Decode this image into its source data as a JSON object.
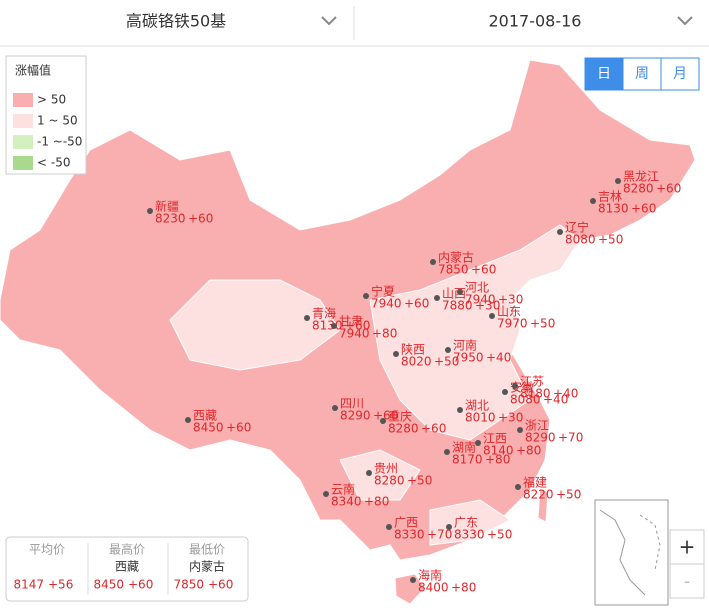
{
  "header": {
    "product": "高碳铬铁50基",
    "date": "2017-08-16"
  },
  "period_tabs": [
    "日",
    "周",
    "月"
  ],
  "legend": {
    "title": "涨幅值",
    "items": [
      {
        "label": "> 50",
        "color": "#f9afb0"
      },
      {
        "label": "1 ~ 50",
        "color": "#fde0e0"
      },
      {
        "label": "-1 ~-50",
        "color": "#d2f1bf"
      },
      {
        "label": "< -50",
        "color": "#a9d98c"
      }
    ]
  },
  "provinces": [
    {
      "name": "新疆",
      "price": 8230,
      "change": "+60"
    },
    {
      "name": "黑龙江",
      "price": 8280,
      "change": "+60"
    },
    {
      "name": "吉林",
      "price": 8130,
      "change": "+60"
    },
    {
      "name": "辽宁",
      "price": 8080,
      "change": "+50"
    },
    {
      "name": "内蒙古",
      "price": 7850,
      "change": "+60"
    },
    {
      "name": "宁夏",
      "price": 7940,
      "change": "+60"
    },
    {
      "name": "山西",
      "price": 7880,
      "change": "+30"
    },
    {
      "name": "河北",
      "price": 7940,
      "change": "+30"
    },
    {
      "name": "青海",
      "price": 8130,
      "change": "+60"
    },
    {
      "name": "甘肃",
      "price": 7940,
      "change": "+80"
    },
    {
      "name": "山东",
      "price": 7970,
      "change": "+50"
    },
    {
      "name": "陕西",
      "price": 8020,
      "change": "+50"
    },
    {
      "name": "河南",
      "price": 7950,
      "change": "+40"
    },
    {
      "name": "安徽",
      "price": 8080,
      "change": "+40"
    },
    {
      "name": "江苏",
      "price": 8180,
      "change": "+40"
    },
    {
      "name": "西藏",
      "price": 8450,
      "change": "+60"
    },
    {
      "name": "四川",
      "price": 8290,
      "change": "+60"
    },
    {
      "name": "重庆",
      "price": 8280,
      "change": "+60"
    },
    {
      "name": "湖北",
      "price": 8010,
      "change": "+30"
    },
    {
      "name": "浙江",
      "price": 8290,
      "change": "+70"
    },
    {
      "name": "湖南",
      "price": 8170,
      "change": "+80"
    },
    {
      "name": "江西",
      "price": 8140,
      "change": "+80"
    },
    {
      "name": "贵州",
      "price": 8280,
      "change": "+50"
    },
    {
      "name": "云南",
      "price": 8340,
      "change": "+80"
    },
    {
      "name": "福建",
      "price": 8220,
      "change": "+50"
    },
    {
      "name": "广西",
      "price": 8330,
      "change": "+70"
    },
    {
      "name": "广东",
      "price": 8330,
      "change": "+50"
    },
    {
      "name": "海南",
      "price": 8400,
      "change": "+80"
    }
  ],
  "summary": [
    {
      "label": "平均价",
      "price": 8147,
      "change": "+56"
    },
    {
      "label": "最高价",
      "region": "西藏",
      "price": 8450,
      "change": "+60"
    },
    {
      "label": "最低价",
      "region": "内蒙古",
      "price": 7850,
      "change": "+60"
    }
  ],
  "zoom": [
    "+",
    "-"
  ]
}
